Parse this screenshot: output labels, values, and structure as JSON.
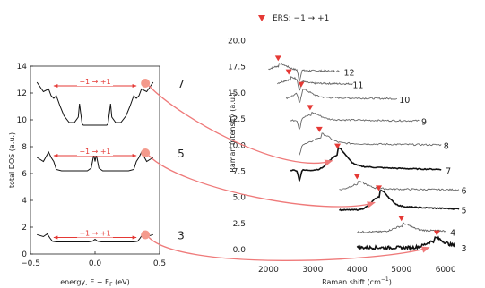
{
  "colors": {
    "marker": "#e53935",
    "arrow": "#ef7a7a",
    "dot": "#f49a8c",
    "thin": "#666666",
    "thick": "#111111"
  },
  "chart_data": [
    {
      "type": "line",
      "xlabel": "energy, E − E",
      "xlabel_sub": "F",
      "xlabel_unit": " (eV)",
      "ylabel": "total DOS (a.u.)",
      "xlim": [
        -0.5,
        0.5
      ],
      "ylim": [
        0,
        14
      ],
      "xticks": [
        -0.5,
        0.0,
        0.5
      ],
      "xtick_labels": [
        "−0.5",
        "0.0",
        "0.5"
      ],
      "yticks": [
        0,
        2,
        4,
        6,
        8,
        10,
        12,
        14
      ],
      "ytick_labels": [
        "0",
        "2",
        "4",
        "6",
        "8",
        "10",
        "12",
        "14"
      ],
      "transition_label": "−1 → +1",
      "series": [
        {
          "name": "7",
          "x": [
            -0.45,
            -0.4,
            -0.36,
            -0.34,
            -0.32,
            -0.3,
            -0.27,
            -0.24,
            -0.2,
            -0.16,
            -0.13,
            -0.12,
            -0.11,
            -0.1,
            -0.09,
            -0.07,
            -0.03,
            0.0,
            0.03,
            0.07,
            0.09,
            0.1,
            0.11,
            0.12,
            0.13,
            0.16,
            0.2,
            0.24,
            0.27,
            0.3,
            0.32,
            0.34,
            0.36,
            0.4,
            0.45
          ],
          "y": [
            12.8,
            12.1,
            12.3,
            11.8,
            11.6,
            11.8,
            11.0,
            10.3,
            9.8,
            9.8,
            10.2,
            11.2,
            10.4,
            9.7,
            9.6,
            9.6,
            9.6,
            9.6,
            9.6,
            9.6,
            9.6,
            9.7,
            10.4,
            11.2,
            10.2,
            9.8,
            9.8,
            10.3,
            11.0,
            11.8,
            11.6,
            11.8,
            12.3,
            12.1,
            12.8
          ]
        },
        {
          "name": "5",
          "x": [
            -0.45,
            -0.4,
            -0.36,
            -0.34,
            -0.32,
            -0.3,
            -0.26,
            -0.22,
            -0.18,
            -0.14,
            -0.1,
            -0.06,
            -0.03,
            -0.01,
            0.0,
            0.01,
            0.03,
            0.06,
            0.1,
            0.14,
            0.18,
            0.22,
            0.26,
            0.3,
            0.32,
            0.34,
            0.36,
            0.4,
            0.45
          ],
          "y": [
            7.2,
            6.9,
            7.6,
            7.2,
            6.9,
            6.3,
            6.2,
            6.2,
            6.2,
            6.2,
            6.2,
            6.2,
            6.4,
            7.4,
            6.9,
            7.4,
            6.4,
            6.2,
            6.2,
            6.2,
            6.2,
            6.2,
            6.2,
            6.3,
            6.9,
            7.2,
            7.6,
            6.9,
            7.2
          ]
        },
        {
          "name": "3",
          "x": [
            -0.45,
            -0.4,
            -0.37,
            -0.35,
            -0.33,
            -0.3,
            -0.25,
            -0.2,
            -0.15,
            -0.1,
            -0.05,
            -0.02,
            0.0,
            0.02,
            0.05,
            0.1,
            0.15,
            0.2,
            0.25,
            0.3,
            0.33,
            0.35,
            0.37,
            0.4,
            0.45
          ],
          "y": [
            1.45,
            1.3,
            1.5,
            1.2,
            0.95,
            0.9,
            0.9,
            0.9,
            0.9,
            0.9,
            0.9,
            0.95,
            1.1,
            0.95,
            0.9,
            0.9,
            0.9,
            0.9,
            0.9,
            0.9,
            0.95,
            1.2,
            1.5,
            1.3,
            1.45
          ]
        }
      ]
    },
    {
      "type": "line",
      "legend_text": "ERS: −1 → +1",
      "xlabel": "Raman shift (cm",
      "xlabel_sup": "−1",
      "xlabel_end": ")",
      "ylabel": "Raman intensity (a.u.)",
      "xlim": [
        1850,
        6300
      ],
      "ylim": [
        -0.5,
        20.8
      ],
      "xticks": [
        2000,
        3000,
        4000,
        5000,
        6000
      ],
      "xtick_labels": [
        "2000",
        "3000",
        "4000",
        "5000",
        "6000"
      ],
      "yticks": [
        0,
        2.5,
        5,
        7.5,
        10,
        12.5,
        15,
        17.5,
        20
      ],
      "ytick_labels": [
        "0.0",
        "2.5",
        "5.0",
        "7.5",
        "10.0",
        "12.5",
        "15.0",
        "17.5",
        "20.0"
      ],
      "series": [
        {
          "name": "12",
          "x_range": [
            2000,
            3600
          ],
          "base": 17.0,
          "peak_x": 2230,
          "peak_amp": 0.6,
          "label_x": 3700,
          "marker_x": 2220,
          "dip_x": 2700,
          "thick": false,
          "noise": 0.08
        },
        {
          "name": "11",
          "x_range": [
            2200,
            3900
          ],
          "base": 15.8,
          "peak_x": 2500,
          "peak_amp": 0.5,
          "label_x": 3900,
          "marker_x": 2460,
          "dip_x": 2700,
          "thick": false,
          "noise": 0.08
        },
        {
          "name": "10",
          "x_range": [
            2400,
            4900
          ],
          "base": 14.4,
          "peak_x": 2760,
          "peak_amp": 0.7,
          "label_x": 4950,
          "marker_x": 2740,
          "dip_x": 2700,
          "thick": false,
          "noise": 0.08
        },
        {
          "name": "9",
          "x_range": [
            2500,
            5400
          ],
          "base": 12.3,
          "peak_x": 2960,
          "peak_amp": 0.6,
          "label_x": 5450,
          "marker_x": 2940,
          "dip_x": 2700,
          "thick": false,
          "noise": 0.08
        },
        {
          "name": "8",
          "x_range": [
            2700,
            5900
          ],
          "base": 10.0,
          "peak_x": 3190,
          "peak_amp": 0.8,
          "label_x": 5950,
          "marker_x": 3150,
          "dip_x": 2700,
          "thick": false,
          "noise": 0.08
        },
        {
          "name": "7",
          "x_range": [
            2500,
            5900
          ],
          "base": 7.6,
          "peak_x": 3560,
          "peak_amp": 1.6,
          "label_x": 6000,
          "marker_x": 3560,
          "dip_x": 2700,
          "thick": true,
          "noise": 0.05
        },
        {
          "name": "6",
          "x_range": [
            3600,
            6300
          ],
          "base": 5.7,
          "peak_x": 4020,
          "peak_amp": 0.6,
          "label_x": 6350,
          "marker_x": 4000,
          "dip_x": null,
          "thick": false,
          "noise": 0.08
        },
        {
          "name": "5",
          "x_range": [
            3600,
            6300
          ],
          "base": 3.8,
          "peak_x": 4520,
          "peak_amp": 1.4,
          "label_x": 6350,
          "marker_x": 4490,
          "dip_x": null,
          "thick": true,
          "noise": 0.05
        },
        {
          "name": "4",
          "x_range": [
            4000,
            6000
          ],
          "base": 1.7,
          "peak_x": 5020,
          "peak_amp": 0.6,
          "label_x": 6100,
          "marker_x": 5000,
          "dip_x": null,
          "thick": false,
          "noise": 0.08
        },
        {
          "name": "3",
          "x_range": [
            4000,
            6200
          ],
          "base": 0.2,
          "peak_x": 5750,
          "peak_amp": 0.7,
          "label_x": 6350,
          "marker_x": 5800,
          "dip_x": null,
          "thick": true,
          "noise": 0.14
        }
      ]
    }
  ]
}
